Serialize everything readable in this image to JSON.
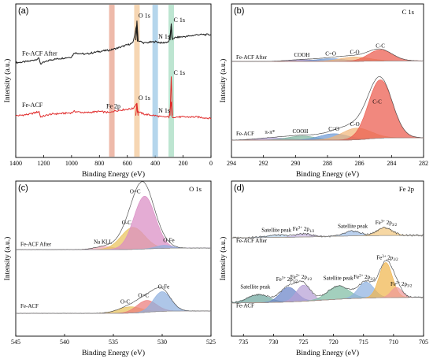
{
  "chart_data": [
    {
      "id": "a",
      "panel_label": "(a)",
      "type": "line",
      "title": "",
      "xlabel": "Binding Energy (eV)",
      "ylabel": "Intensity (a.u.)",
      "xlim": [
        1400,
        0
      ],
      "xticks": [
        "1400",
        "1200",
        "1000",
        "800",
        "600",
        "400",
        "200",
        "0"
      ],
      "highlight_bands": [
        {
          "center": 711,
          "color": "#e8a38e"
        },
        {
          "center": 531,
          "color": "#f3c89a"
        },
        {
          "center": 400,
          "color": "#9cc8e6"
        },
        {
          "center": 285,
          "color": "#a7dcc2"
        }
      ],
      "series": [
        {
          "name": "Fe-ACF After",
          "color": "#1a1a1a",
          "points": [
            [
              1380,
              68
            ],
            [
              1300,
              69
            ],
            [
              1230,
              71
            ],
            [
              1225,
              67
            ],
            [
              1150,
              70
            ],
            [
              1000,
              72
            ],
            [
              980,
              75
            ],
            [
              900,
              74
            ],
            [
              800,
              76
            ],
            [
              720,
              77
            ],
            [
              650,
              79
            ],
            [
              560,
              82
            ],
            [
              532,
              95
            ],
            [
              531,
              98
            ],
            [
              529,
              84
            ],
            [
              480,
              82
            ],
            [
              400,
              83
            ],
            [
              350,
              82
            ],
            [
              300,
              83
            ],
            [
              285,
              94
            ],
            [
              284,
              85
            ],
            [
              250,
              86
            ],
            [
              150,
              87
            ],
            [
              100,
              88
            ],
            [
              0,
              88
            ]
          ],
          "annotations": [
            {
              "text": "O 1s",
              "x": 531,
              "y": 99
            },
            {
              "text": "N 1s",
              "x": 400,
              "y": 84
            },
            {
              "text": "C 1s",
              "x": 285,
              "y": 96
            }
          ]
        },
        {
          "name": "Fe-ACF",
          "color": "#e02a2a",
          "points": [
            [
              1380,
              30
            ],
            [
              1300,
              31
            ],
            [
              1230,
              33
            ],
            [
              1225,
              29
            ],
            [
              1150,
              31
            ],
            [
              1000,
              32
            ],
            [
              980,
              33
            ],
            [
              900,
              32
            ],
            [
              800,
              33
            ],
            [
              720,
              32
            ],
            [
              711,
              33
            ],
            [
              650,
              34
            ],
            [
              560,
              35
            ],
            [
              531,
              39
            ],
            [
              529,
              33
            ],
            [
              480,
              31
            ],
            [
              400,
              30
            ],
            [
              350,
              29
            ],
            [
              300,
              29
            ],
            [
              285,
              40
            ],
            [
              284,
              29
            ],
            [
              200,
              29
            ],
            [
              100,
              29
            ],
            [
              0,
              28
            ]
          ],
          "annotations": [
            {
              "text": "Fe 2p",
              "x": 711,
              "y": 34
            },
            {
              "text": "O 1s",
              "x": 531,
              "y": 40
            },
            {
              "text": "N 1s",
              "x": 400,
              "y": 31
            },
            {
              "text": "C 1s",
              "x": 285,
              "y": 58
            }
          ]
        }
      ]
    },
    {
      "id": "b",
      "panel_label": "(b)",
      "type": "line",
      "title": "C 1s",
      "xlabel": "Binding Energy (eV)",
      "ylabel": "Intensity (a.u.)",
      "xlim": [
        294,
        282
      ],
      "xticks": [
        "294",
        "292",
        "290",
        "288",
        "286",
        "284",
        "282"
      ],
      "series": [
        {
          "name": "Fe-ACF After",
          "color": "#444444",
          "peaks": [
            {
              "label": "COOH",
              "center": 289.6,
              "height": 6,
              "width": 0.9,
              "color": "#9a86c0"
            },
            {
              "label": "C=O",
              "center": 287.8,
              "height": 10,
              "width": 0.9,
              "color": "#6f9ad4"
            },
            {
              "label": "C-O",
              "center": 286.3,
              "height": 16,
              "width": 0.9,
              "color": "#f1b67a"
            },
            {
              "label": "C-C",
              "center": 284.7,
              "height": 40,
              "width": 0.75,
              "color": "#ec5a4c"
            }
          ]
        },
        {
          "name": "Fe-ACF",
          "color": "#444444",
          "peaks": [
            {
              "label": "π-π*",
              "center": 291.4,
              "height": 4,
              "width": 1.0,
              "color": "#b3a2d6"
            },
            {
              "label": "COOH",
              "center": 289.6,
              "height": 7,
              "width": 0.9,
              "color": "#7fb6a0"
            },
            {
              "label": "C=O",
              "center": 287.6,
              "height": 11,
              "width": 0.9,
              "color": "#6f9ad4"
            },
            {
              "label": "C-O",
              "center": 286.2,
              "height": 20,
              "width": 0.9,
              "color": "#f1b67a"
            },
            {
              "label": "C-C",
              "center": 284.7,
              "height": 100,
              "width": 0.75,
              "color": "#ec5a4c"
            }
          ]
        }
      ]
    },
    {
      "id": "c",
      "panel_label": "(c)",
      "type": "line",
      "title": "O 1s",
      "xlabel": "Binding Energy (eV)",
      "ylabel": "Intensity (a.u.)",
      "xlim": [
        545,
        525
      ],
      "xticks": [
        "545",
        "540",
        "535",
        "530",
        "525"
      ],
      "series": [
        {
          "name": "Fe-ACF After",
          "color": "#444444",
          "peaks": [
            {
              "label": "Na KLL",
              "center": 535.9,
              "height": 4,
              "width": 1.0,
              "color": "#f1a6b4"
            },
            {
              "label": "O-C",
              "center": 533.0,
              "height": 30,
              "width": 1.2,
              "color": "#e9c25a"
            },
            {
              "label": "O=C",
              "center": 531.8,
              "height": 72,
              "width": 1.1,
              "color": "#d98cc4"
            },
            {
              "label": "O-Fe",
              "center": 529.8,
              "height": 4,
              "width": 0.8,
              "color": "#8fb0df"
            }
          ]
        },
        {
          "name": "Fe-ACF",
          "color": "#444444",
          "peaks": [
            {
              "label": "O-C",
              "center": 533.3,
              "height": 8,
              "width": 1.2,
              "color": "#e9c25a"
            },
            {
              "label": "O=C",
              "center": 531.6,
              "height": 15,
              "width": 1.0,
              "color": "#ec7c7c"
            },
            {
              "label": "O-Fe",
              "center": 530.0,
              "height": 25,
              "width": 0.9,
              "color": "#8fb0df"
            }
          ]
        }
      ]
    },
    {
      "id": "d",
      "panel_label": "(d)",
      "type": "line",
      "title": "Fe 2p",
      "xlabel": "Binding Energy (eV)",
      "ylabel": "Intensity (a.u.)",
      "xlim": [
        737,
        705
      ],
      "xticks": [
        "735",
        "730",
        "725",
        "720",
        "715",
        "710",
        "705"
      ],
      "series": [
        {
          "name": "Fe-ACF After",
          "color": "#444444",
          "peaks": [
            {
              "label": "Satellite peak",
              "center": 729.5,
              "height": 3,
              "width": 1.8,
              "color": "#b7d3ea"
            },
            {
              "label": "Fe3+ 2p1/2",
              "center": 725.0,
              "height": 4,
              "width": 1.4,
              "color": "#c8b6e0"
            },
            {
              "label": "Satellite peak",
              "center": 716.8,
              "height": 6,
              "width": 1.3,
              "color": "#9fbee6"
            },
            {
              "label": "Fe3+ 2p3/2",
              "center": 711.5,
              "height": 10,
              "width": 1.3,
              "color": "#f2c880"
            }
          ]
        },
        {
          "name": "Fe-ACF",
          "color": "#444444",
          "peaks": [
            {
              "label": "Satellite peak",
              "center": 732.5,
              "height": 11,
              "width": 1.8,
              "color": "#6fa8a0"
            },
            {
              "label": "Fe3+ 2p1/2",
              "center": 727.5,
              "height": 20,
              "width": 1.4,
              "color": "#6a84c8"
            },
            {
              "label": "Fe2+ 2p1/2",
              "center": 725.0,
              "height": 22,
              "width": 1.2,
              "color": "#b5a0d6"
            },
            {
              "label": "Satellite peak",
              "center": 719.2,
              "height": 18,
              "width": 1.8,
              "color": "#7fbca4"
            },
            {
              "label": "Fe2+ 2p3/2",
              "center": 714.6,
              "height": 22,
              "width": 1.3,
              "color": "#8fb2e0"
            },
            {
              "label": "Fe3+ 2p3/2",
              "center": 711.3,
              "height": 48,
              "width": 1.1,
              "color": "#f0b54e"
            },
            {
              "label": "Fe2+ 2p3/2",
              "center": 709.5,
              "height": 14,
              "width": 0.9,
              "color": "#ef9a9a"
            }
          ]
        }
      ]
    }
  ]
}
